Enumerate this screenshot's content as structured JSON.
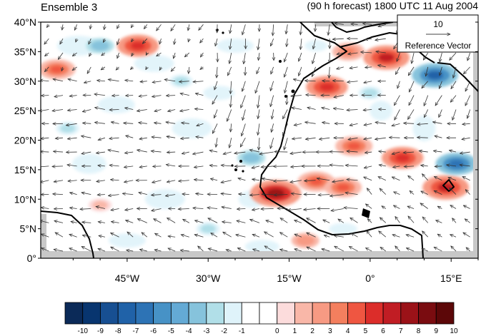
{
  "title_left": "Ensemble 3",
  "title_right": "(90 h forecast) 1800 UTC 11 Aug 2004",
  "y_ticks": [
    "0°",
    "5°N",
    "10°N",
    "15°N",
    "20°N",
    "25°N",
    "30°N",
    "35°N",
    "40°N"
  ],
  "x_ticks": [
    "45°W",
    "30°W",
    "15°W",
    "0°",
    "15°E"
  ],
  "reference_vector": {
    "value": "10",
    "label": "Reference Vector"
  },
  "colorbar": {
    "labels": [
      "-10",
      "-9",
      "-8",
      "-7",
      "-6",
      "-5",
      "-4",
      "-3",
      "-2",
      "-1",
      "0",
      "1",
      "2",
      "3",
      "4",
      "5",
      "6",
      "7",
      "8",
      "9",
      "10"
    ],
    "colors": [
      "#0b2a58",
      "#08356f",
      "#174f92",
      "#2062a8",
      "#2d73b5",
      "#4792c6",
      "#64aad5",
      "#86c3dc",
      "#b1dfe8",
      "#dff3fa",
      "#ffffff",
      "#ffffff",
      "#fcdcdc",
      "#f9b7a8",
      "#f79a83",
      "#f47f5e",
      "#ef5641",
      "#dc2d2a",
      "#c11d24",
      "#9b1218",
      "#7a0c10",
      "#5c0708"
    ]
  },
  "map": {
    "lon_range": [
      -61,
      20
    ],
    "lat_range": [
      0,
      40
    ],
    "field": "shaded anomaly field with wind vectors",
    "features": [
      {
        "kind": "positive",
        "lon": -17.5,
        "lat": 11,
        "value": 8
      },
      {
        "kind": "positive",
        "lon": -10,
        "lat": 13,
        "value": 5
      },
      {
        "kind": "positive",
        "lon": -5,
        "lat": 12,
        "value": 5
      },
      {
        "kind": "positive",
        "lon": -8,
        "lat": 29,
        "value": 6
      },
      {
        "kind": "positive",
        "lon": 3,
        "lat": 34,
        "value": 7
      },
      {
        "kind": "positive",
        "lon": 6,
        "lat": 17,
        "value": 6
      },
      {
        "kind": "positive",
        "lon": 14,
        "lat": 12,
        "value": 7
      },
      {
        "kind": "positive",
        "lon": -43,
        "lat": 36,
        "value": 6
      },
      {
        "kind": "positive",
        "lon": -58,
        "lat": 32,
        "value": 5
      },
      {
        "kind": "positive",
        "lon": -3,
        "lat": 19,
        "value": 5
      },
      {
        "kind": "positive",
        "lon": -4,
        "lat": 35,
        "value": 4
      },
      {
        "kind": "positive",
        "lon": -12,
        "lat": 3,
        "value": 3
      },
      {
        "kind": "positive",
        "lon": -50,
        "lat": 9,
        "value": 2
      },
      {
        "kind": "negative",
        "lon": 12,
        "lat": 31,
        "value": -7
      },
      {
        "kind": "negative",
        "lon": 16,
        "lat": 16,
        "value": -6
      },
      {
        "kind": "negative",
        "lon": -22,
        "lat": 17,
        "value": -3
      },
      {
        "kind": "negative",
        "lon": -50,
        "lat": 36,
        "value": -3
      },
      {
        "kind": "negative",
        "lon": -35,
        "lat": 30,
        "value": -2
      },
      {
        "kind": "negative",
        "lon": -56,
        "lat": 22,
        "value": -2
      },
      {
        "kind": "negative",
        "lon": -30,
        "lat": 5,
        "value": -2
      },
      {
        "kind": "negative",
        "lon": 0,
        "lat": 28,
        "value": -2
      }
    ]
  }
}
